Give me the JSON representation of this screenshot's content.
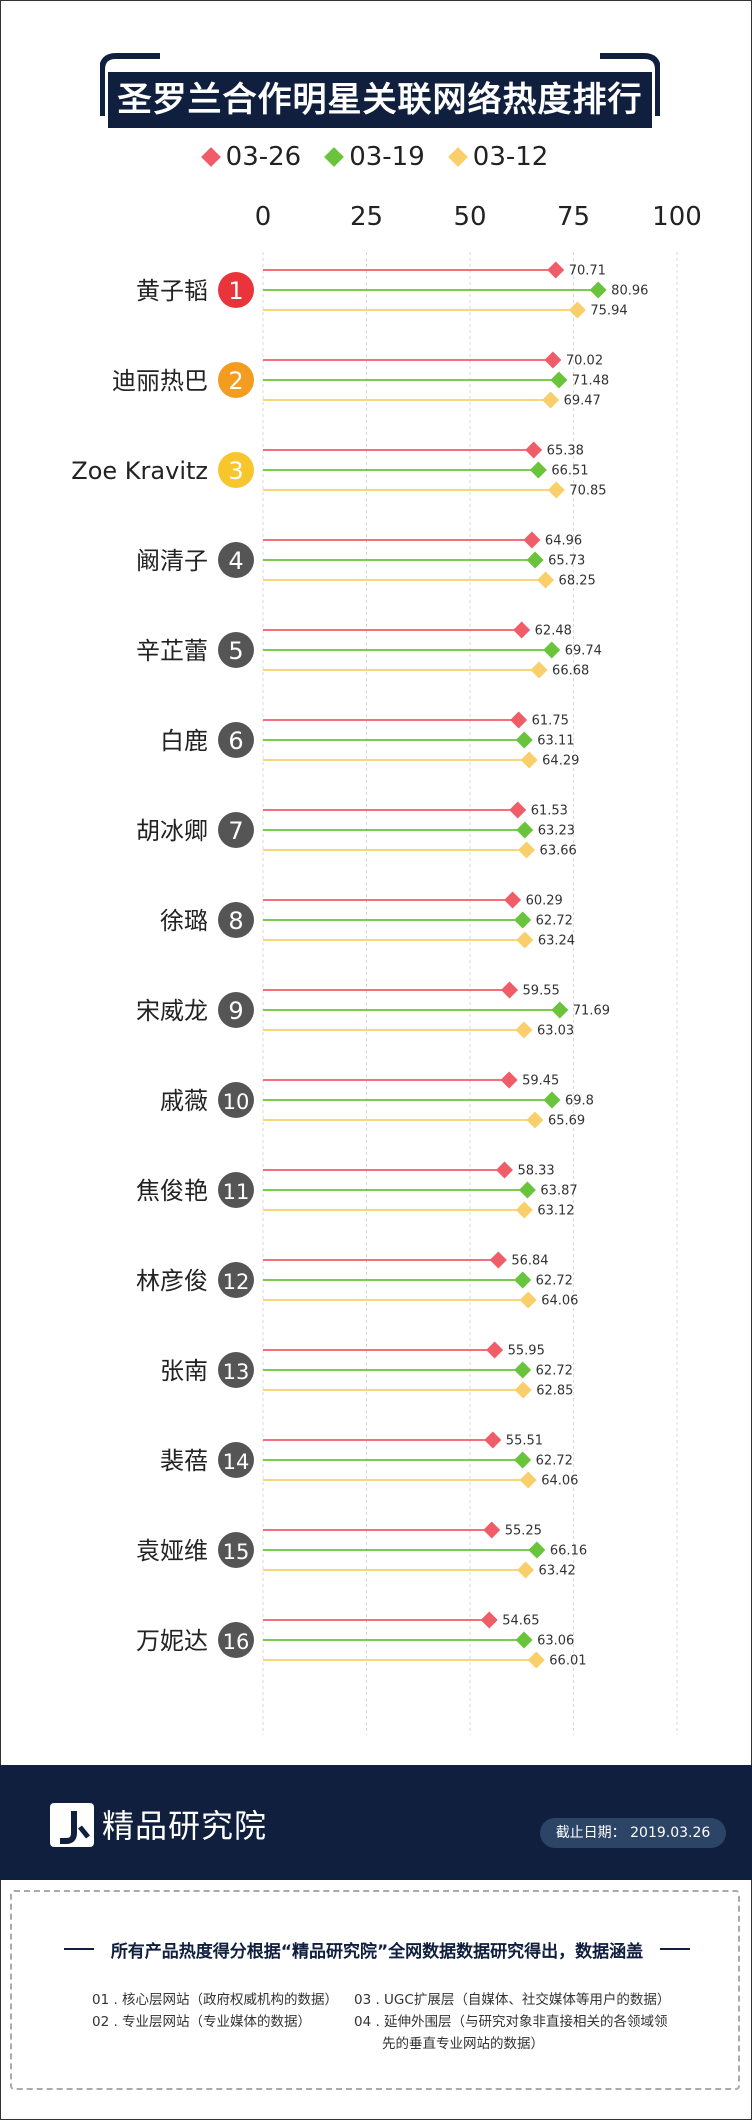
{
  "title": "圣罗兰合作明星关联网络热度排行榜",
  "legend": [
    {
      "label": "03-26",
      "color": "#ef5d68"
    },
    {
      "label": "03-19",
      "color": "#6ac43b"
    },
    {
      "label": "03-12",
      "color": "#f8cf6b"
    }
  ],
  "rank_colors": {
    "1": "#e9343b",
    "2": "#f39c20",
    "3": "#f7c52c",
    "default": "#555555"
  },
  "chart_data": {
    "type": "bar",
    "xlim": [
      0,
      100
    ],
    "ticks": [
      "0",
      "25",
      "50",
      "75",
      "100"
    ],
    "grid": true,
    "categories": [
      "黄子韬",
      "迪丽热巴",
      "Zoe Kravitz",
      "阚清子",
      "辛芷蕾",
      "白鹿",
      "胡冰卿",
      "徐璐",
      "宋威龙",
      "戚薇",
      "焦俊艳",
      "林彦俊",
      "张南",
      "裴蓓",
      "袁娅维",
      "万妮达"
    ],
    "series": [
      {
        "name": "03-26",
        "values": [
          "70.71",
          "70.02",
          "65.38",
          "64.96",
          "62.48",
          "61.75",
          "61.53",
          "60.29",
          "59.55",
          "59.45",
          "58.33",
          "56.84",
          "55.95",
          "55.51",
          "55.25",
          "54.65"
        ]
      },
      {
        "name": "03-19",
        "values": [
          "80.96",
          "71.48",
          "66.51",
          "65.73",
          "69.74",
          "63.11",
          "63.23",
          "62.72",
          "71.69",
          "69.8",
          "63.87",
          "62.72",
          "62.72",
          "62.72",
          "66.16",
          "63.06"
        ]
      },
      {
        "name": "03-12",
        "values": [
          "75.94",
          "69.47",
          "70.85",
          "68.25",
          "66.68",
          "64.29",
          "63.66",
          "63.24",
          "63.03",
          "65.69",
          "63.12",
          "64.06",
          "62.85",
          "64.06",
          "63.42",
          "66.01"
        ]
      }
    ]
  },
  "footer": {
    "brand": "精品研究院",
    "date_label": "截止日期： 2019.03.26"
  },
  "note": {
    "title": "所有产品热度得分根据“精品研究院”全网数据数据研究得出，数据涵盖",
    "items": [
      "01 . 核心层网站（政府权威机构的数据）",
      "02 . 专业层网站（专业媒体的数据）",
      "03 . UGC扩展层（自媒体、社交媒体等用户的数据）",
      "04 . 延伸外围层（与研究对象非直接相关的各领域领",
      "先的垂直专业网站的数据）"
    ]
  }
}
